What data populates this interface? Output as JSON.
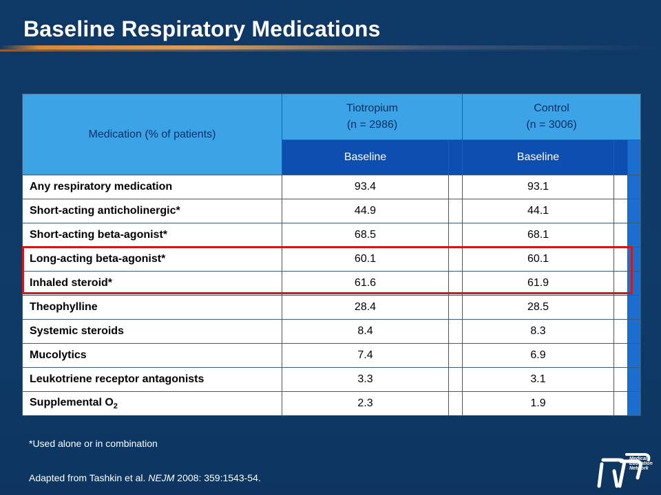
{
  "slide": {
    "title": "Baseline Respiratory Medications",
    "footnote": "*Used alone or in combination",
    "source": {
      "prefix": "Adapted from Tashkin et al. ",
      "journal": "NEJM",
      "suffix": " 2008: 359:1543-54."
    },
    "logo": {
      "line1": "Medical",
      "line2": "Education",
      "line3": "Network"
    }
  },
  "table": {
    "medication_header": "Medication  (% of patients)",
    "groups": [
      {
        "name": "Tiotropium",
        "n": "(n = 2986)",
        "sub": "Baseline"
      },
      {
        "name": "Control",
        "n": "(n = 3006)",
        "sub": "Baseline"
      }
    ],
    "rows": [
      {
        "medication": "Any respiratory medication",
        "tiotropium": "93.4",
        "control": "93.1"
      },
      {
        "medication": "Short-acting anticholinergic*",
        "tiotropium": "44.9",
        "control": "44.1"
      },
      {
        "medication": "Short-acting beta-agonist*",
        "tiotropium": "68.5",
        "control": "68.1"
      },
      {
        "medication": "Long-acting beta-agonist*",
        "tiotropium": "60.1",
        "control": "60.1",
        "highlighted": true
      },
      {
        "medication": "Inhaled steroid*",
        "tiotropium": "61.6",
        "control": "61.9",
        "highlighted": true
      },
      {
        "medication": "Theophylline",
        "tiotropium": "28.4",
        "control": "28.5"
      },
      {
        "medication": "Systemic steroids",
        "tiotropium": "8.4",
        "control": "8.3"
      },
      {
        "medication": "Mucolytics",
        "tiotropium": "7.4",
        "control": "6.9"
      },
      {
        "medication": "Leukotriene receptor antagonists",
        "tiotropium": "3.3",
        "control": "3.1"
      },
      {
        "medication": "Supplemental O",
        "medication_sub": "2",
        "tiotropium": "2.3",
        "control": "1.9"
      }
    ]
  },
  "colors": {
    "background": "#0f3a66",
    "header_light": "#3ca3e6",
    "header_dark": "#0d4fb0",
    "highlight": "#cc1a1a"
  }
}
